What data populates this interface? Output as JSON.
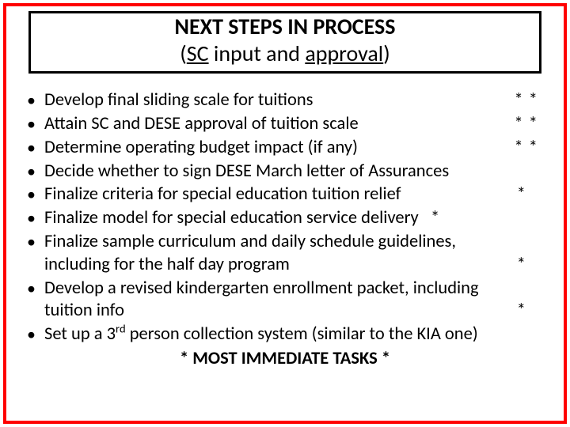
{
  "title": {
    "line1": "NEXT STEPS IN PROCESS",
    "line2_prefix": "(",
    "line2_sc": "SC",
    "line2_mid": " input and ",
    "line2_approval": "approval",
    "line2_suffix": ")"
  },
  "items": [
    {
      "text": "Develop final sliding scale for tuitions",
      "marks": "*  *"
    },
    {
      "text": "Attain SC and DESE approval of tuition scale",
      "marks": "*  *"
    },
    {
      "text": "Determine operating budget impact (if any)",
      "marks": "*  *"
    },
    {
      "text": "Decide whether to sign DESE March letter of Assurances",
      "marks": ""
    },
    {
      "text": "Finalize criteria for special education tuition relief",
      "marks_single": "*"
    },
    {
      "text": "Finalize model for special education service delivery",
      "marks_inline": "   *"
    },
    {
      "text": "Finalize sample curriculum and daily schedule guidelines,",
      "cont": "including for the half day program",
      "trail_mark": "*"
    },
    {
      "text": "Develop a revised kindergarten enrollment packet, including",
      "cont": "tuition info",
      "trail_mark": "*"
    },
    {
      "pre": "Set up a 3",
      "sup": "rd",
      "post": " person collection system (similar to the KIA one)"
    }
  ],
  "footer": "* MOST IMMEDIATE TASKS *"
}
